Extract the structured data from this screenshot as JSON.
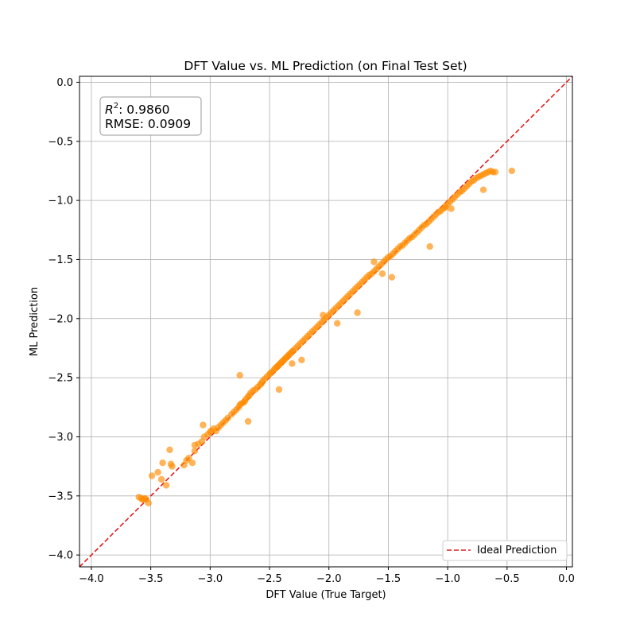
{
  "chart_data": {
    "type": "scatter",
    "title": "DFT Value vs. ML Prediction (on Final Test Set)",
    "xlabel": "DFT Value (True Target)",
    "ylabel": "ML Prediction",
    "xlim": [
      -4.1,
      0.05
    ],
    "ylim": [
      -4.1,
      0.05
    ],
    "xticks": [
      -4.0,
      -3.5,
      -3.0,
      -2.5,
      -2.0,
      -1.5,
      -1.0,
      -0.5,
      0.0
    ],
    "xtick_labels": [
      "−4.0",
      "−3.5",
      "−3.0",
      "−2.5",
      "−2.0",
      "−1.5",
      "−1.0",
      "−0.5",
      "0.0"
    ],
    "yticks": [
      -4.0,
      -3.5,
      -3.0,
      -2.5,
      -2.0,
      -1.5,
      -1.0,
      -0.5,
      0.0
    ],
    "ytick_labels": [
      "−4.0",
      "−3.5",
      "−3.0",
      "−2.5",
      "−2.0",
      "−1.5",
      "−1.0",
      "−0.5",
      "0.0"
    ],
    "grid": true,
    "point_color": "#ff8c00",
    "ideal_line_color": "#e31a1c",
    "stats": {
      "r2_label": "R",
      "r2_sup": "2",
      "r2_value": ": 0.9860",
      "rmse": "RMSE: 0.0909"
    },
    "legend": {
      "position": "lower-right",
      "entries": [
        {
          "label": "Ideal Prediction",
          "style": "dashed",
          "color": "#e31a1c"
        }
      ]
    },
    "series": [
      {
        "x": [
          -3.6,
          -3.58,
          -3.56,
          -3.55,
          -3.57,
          -3.54,
          -3.52,
          -3.49,
          -3.44,
          -3.41,
          -3.37,
          -3.34,
          -3.33,
          -3.32,
          -3.22,
          -3.2,
          -3.18,
          -3.15,
          -3.13,
          -3.13,
          -3.1,
          -3.07,
          -3.05,
          -3.02,
          -3.0,
          -2.99,
          -2.97,
          -2.95,
          -2.93,
          -2.91,
          -2.89,
          -2.87,
          -2.85,
          -2.82,
          -2.8,
          -2.78,
          -2.76,
          -2.75,
          -2.74,
          -2.72,
          -2.71,
          -2.7,
          -2.68,
          -2.67,
          -2.66,
          -2.64,
          -2.62,
          -2.6,
          -2.58,
          -2.57,
          -2.56,
          -2.54,
          -2.52,
          -2.5,
          -2.49,
          -2.48,
          -2.46,
          -2.45,
          -2.44,
          -2.43,
          -2.42,
          -2.41,
          -2.4,
          -2.39,
          -2.38,
          -2.37,
          -2.36,
          -2.35,
          -2.34,
          -2.33,
          -2.32,
          -2.31,
          -2.3,
          -2.28,
          -2.26,
          -2.24,
          -2.22,
          -2.2,
          -2.18,
          -2.16,
          -2.14,
          -2.12,
          -2.1,
          -2.08,
          -2.06,
          -2.04,
          -2.02,
          -2.0,
          -1.98,
          -1.96,
          -1.94,
          -1.92,
          -1.9,
          -1.88,
          -1.86,
          -1.84,
          -1.82,
          -1.8,
          -1.78,
          -1.76,
          -1.74,
          -1.72,
          -1.7,
          -1.68,
          -1.66,
          -1.64,
          -1.62,
          -1.6,
          -1.58,
          -1.56,
          -1.54,
          -1.52,
          -1.5,
          -1.48,
          -1.46,
          -1.44,
          -1.42,
          -1.4,
          -1.38,
          -1.36,
          -1.34,
          -1.32,
          -1.3,
          -1.28,
          -1.26,
          -1.24,
          -1.22,
          -1.2,
          -1.18,
          -1.16,
          -1.14,
          -1.12,
          -1.1,
          -1.08,
          -1.06,
          -1.04,
          -1.02,
          -1.0,
          -0.98,
          -0.96,
          -0.94,
          -0.92,
          -0.9,
          -0.88,
          -0.86,
          -0.84,
          -0.82,
          -0.8,
          -0.78,
          -0.76,
          -0.74,
          -0.72,
          -0.7,
          -0.68,
          -0.66,
          -0.64,
          -0.62,
          -0.6,
          -0.46,
          -2.75,
          -2.42,
          -2.23,
          -2.05,
          -1.93,
          -1.62,
          -1.47,
          -1.15,
          -0.97,
          -0.7,
          -3.4,
          -3.06,
          -2.68,
          -2.31,
          -1.76,
          -1.55,
          -1.02
        ],
        "y": [
          -3.51,
          -3.52,
          -3.53,
          -3.52,
          -3.53,
          -3.53,
          -3.56,
          -3.33,
          -3.3,
          -3.36,
          -3.41,
          -3.11,
          -3.23,
          -3.25,
          -3.24,
          -3.2,
          -3.18,
          -3.22,
          -3.07,
          -3.12,
          -3.06,
          -3.04,
          -3.0,
          -2.98,
          -2.96,
          -2.95,
          -2.93,
          -2.95,
          -2.92,
          -2.9,
          -2.88,
          -2.86,
          -2.84,
          -2.81,
          -2.79,
          -2.77,
          -2.75,
          -2.73,
          -2.72,
          -2.71,
          -2.7,
          -2.68,
          -2.66,
          -2.65,
          -2.63,
          -2.61,
          -2.6,
          -2.58,
          -2.56,
          -2.55,
          -2.53,
          -2.51,
          -2.49,
          -2.47,
          -2.46,
          -2.45,
          -2.43,
          -2.42,
          -2.41,
          -2.4,
          -2.39,
          -2.38,
          -2.37,
          -2.36,
          -2.35,
          -2.34,
          -2.33,
          -2.32,
          -2.31,
          -2.3,
          -2.29,
          -2.28,
          -2.27,
          -2.25,
          -2.23,
          -2.21,
          -2.19,
          -2.17,
          -2.15,
          -2.13,
          -2.11,
          -2.09,
          -2.07,
          -2.05,
          -2.03,
          -2.01,
          -1.99,
          -1.97,
          -1.95,
          -1.93,
          -1.91,
          -1.89,
          -1.87,
          -1.85,
          -1.83,
          -1.81,
          -1.79,
          -1.77,
          -1.75,
          -1.73,
          -1.71,
          -1.69,
          -1.67,
          -1.65,
          -1.63,
          -1.62,
          -1.6,
          -1.58,
          -1.56,
          -1.54,
          -1.52,
          -1.5,
          -1.48,
          -1.47,
          -1.45,
          -1.43,
          -1.41,
          -1.39,
          -1.38,
          -1.36,
          -1.34,
          -1.32,
          -1.31,
          -1.29,
          -1.27,
          -1.25,
          -1.23,
          -1.21,
          -1.2,
          -1.18,
          -1.16,
          -1.14,
          -1.12,
          -1.1,
          -1.09,
          -1.07,
          -1.05,
          -1.03,
          -1.01,
          -0.99,
          -0.97,
          -0.95,
          -0.93,
          -0.92,
          -0.9,
          -0.88,
          -0.86,
          -0.84,
          -0.83,
          -0.81,
          -0.8,
          -0.79,
          -0.78,
          -0.77,
          -0.76,
          -0.75,
          -0.76,
          -0.76,
          -0.75,
          -2.48,
          -2.6,
          -2.35,
          -1.97,
          -2.04,
          -1.52,
          -1.65,
          -1.39,
          -1.07,
          -0.91,
          -3.22,
          -2.9,
          -2.87,
          -2.38,
          -1.95,
          -1.62,
          -1.06
        ]
      }
    ]
  }
}
